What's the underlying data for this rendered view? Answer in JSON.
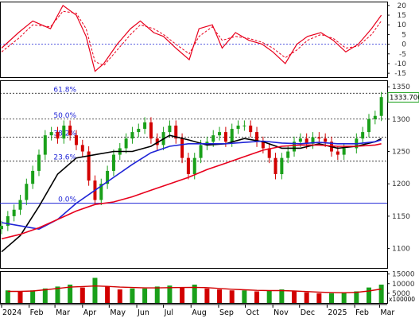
{
  "chart_data": [
    {
      "type": "line",
      "panel": "oscillator",
      "y_ticks": [
        "20",
        "15",
        "10",
        "5",
        "0",
        "-5",
        "-10",
        "-15"
      ],
      "ylim": [
        -17,
        22
      ],
      "grid": "dashed horizontal at 0",
      "series": [
        {
          "style": "solid",
          "color": "#e8001c",
          "x": [
            "2024-01-01",
            "2024-01-20",
            "2024-02-05",
            "2024-02-25",
            "2024-03-10",
            "2024-03-25",
            "2024-04-05",
            "2024-04-15",
            "2024-04-25",
            "2024-05-10",
            "2024-05-25",
            "2024-06-05",
            "2024-06-20",
            "2024-07-01",
            "2024-07-15",
            "2024-07-30",
            "2024-08-10",
            "2024-08-25",
            "2024-09-05",
            "2024-09-20",
            "2024-10-05",
            "2024-10-20",
            "2024-11-01",
            "2024-11-15",
            "2024-11-28",
            "2024-12-10",
            "2024-12-25",
            "2025-01-08",
            "2025-01-22",
            "2025-02-05",
            "2025-02-20",
            "2025-03-03"
          ],
          "values": [
            -2,
            6,
            12,
            8,
            20,
            15,
            4,
            -14,
            -10,
            0,
            8,
            12,
            6,
            4,
            -2,
            -8,
            8,
            10,
            -2,
            6,
            2,
            0,
            -4,
            -10,
            0,
            4,
            6,
            2,
            -4,
            0,
            8,
            15
          ]
        },
        {
          "style": "dashed",
          "color": "#e8001c",
          "x": [
            "2024-01-01",
            "2024-01-20",
            "2024-02-05",
            "2024-02-25",
            "2024-03-10",
            "2024-03-25",
            "2024-04-05",
            "2024-04-15",
            "2024-04-25",
            "2024-05-10",
            "2024-05-25",
            "2024-06-05",
            "2024-06-20",
            "2024-07-01",
            "2024-07-15",
            "2024-07-30",
            "2024-08-10",
            "2024-08-25",
            "2024-09-05",
            "2024-09-20",
            "2024-10-05",
            "2024-10-20",
            "2024-11-01",
            "2024-11-15",
            "2024-11-28",
            "2024-12-10",
            "2024-12-25",
            "2025-01-08",
            "2025-01-22",
            "2025-02-05",
            "2025-02-20",
            "2025-03-03"
          ],
          "values": [
            -4,
            3,
            10,
            9,
            17,
            16,
            8,
            -9,
            -11,
            -3,
            5,
            10,
            8,
            5,
            0,
            -5,
            4,
            9,
            2,
            4,
            3,
            1,
            -2,
            -7,
            -3,
            2,
            5,
            3,
            -2,
            -1,
            5,
            12
          ]
        }
      ]
    },
    {
      "type": "line",
      "panel": "price",
      "ylim": [
        1070,
        1360
      ],
      "y_ticks": [
        "1350",
        "1300",
        "1250",
        "1200",
        "1150",
        "1100"
      ],
      "x_labels": [
        "2024",
        "Feb",
        "Mar",
        "Apr",
        "May",
        "Jun",
        "Jul",
        "Aug",
        "Sep",
        "Oct",
        "Nov",
        "Dec",
        "2025",
        "Feb",
        "Mar"
      ],
      "x_label_dates": [
        "2024-01-01",
        "2024-02-01",
        "2024-03-01",
        "2024-04-01",
        "2024-05-01",
        "2024-06-01",
        "2024-07-01",
        "2024-08-01",
        "2024-09-01",
        "2024-10-01",
        "2024-11-01",
        "2024-12-01",
        "2025-01-01",
        "2025-02-01",
        "2025-03-01"
      ],
      "last_value": "1333.700",
      "fibonacci": [
        {
          "label": "61.8%",
          "value": 1340
        },
        {
          "label": "50.0%",
          "value": 1300
        },
        {
          "label": "38.2%",
          "value": 1272
        },
        {
          "label": "23.6%",
          "value": 1235
        },
        {
          "label": "0.0%",
          "value": 1170
        }
      ],
      "price_close": {
        "x": [
          "2024-01-01",
          "2024-01-08",
          "2024-01-15",
          "2024-01-22",
          "2024-01-29",
          "2024-02-05",
          "2024-02-12",
          "2024-02-19",
          "2024-02-26",
          "2024-03-04",
          "2024-03-11",
          "2024-03-18",
          "2024-03-25",
          "2024-04-01",
          "2024-04-08",
          "2024-04-15",
          "2024-04-22",
          "2024-04-29",
          "2024-05-06",
          "2024-05-13",
          "2024-05-20",
          "2024-05-27",
          "2024-06-03",
          "2024-06-10",
          "2024-06-17",
          "2024-06-24",
          "2024-07-01",
          "2024-07-08",
          "2024-07-15",
          "2024-07-22",
          "2024-07-29",
          "2024-08-05",
          "2024-08-12",
          "2024-08-19",
          "2024-08-26",
          "2024-09-02",
          "2024-09-09",
          "2024-09-16",
          "2024-09-23",
          "2024-09-30",
          "2024-10-07",
          "2024-10-14",
          "2024-10-21",
          "2024-10-28",
          "2024-11-04",
          "2024-11-11",
          "2024-11-18",
          "2024-11-25",
          "2024-12-02",
          "2024-12-09",
          "2024-12-16",
          "2024-12-23",
          "2024-12-30",
          "2025-01-06",
          "2025-01-13",
          "2025-01-20",
          "2025-02-03",
          "2025-02-10",
          "2025-02-17",
          "2025-02-24",
          "2025-03-03"
        ],
        "values": [
          1135,
          1150,
          1160,
          1175,
          1200,
          1220,
          1245,
          1275,
          1280,
          1270,
          1290,
          1275,
          1260,
          1250,
          1205,
          1175,
          1200,
          1220,
          1245,
          1255,
          1270,
          1280,
          1285,
          1295,
          1270,
          1260,
          1280,
          1290,
          1270,
          1240,
          1215,
          1240,
          1260,
          1265,
          1275,
          1280,
          1265,
          1285,
          1290,
          1290,
          1280,
          1265,
          1255,
          1240,
          1215,
          1240,
          1250,
          1265,
          1270,
          1262,
          1272,
          1270,
          1265,
          1250,
          1245,
          1255,
          1270,
          1280,
          1300,
          1305,
          1334
        ]
      },
      "series": [
        {
          "color": "#000000",
          "x": [
            "2024-01-01",
            "2024-01-22",
            "2024-02-12",
            "2024-03-04",
            "2024-03-25",
            "2024-04-15",
            "2024-05-06",
            "2024-05-27",
            "2024-06-17",
            "2024-07-08",
            "2024-07-29",
            "2024-08-19",
            "2024-09-09",
            "2024-09-30",
            "2024-10-21",
            "2024-11-11",
            "2024-12-02",
            "2024-12-23",
            "2025-01-13",
            "2025-02-03",
            "2025-02-24",
            "2025-03-03"
          ],
          "values": [
            1095,
            1120,
            1165,
            1215,
            1240,
            1245,
            1250,
            1250,
            1258,
            1275,
            1268,
            1260,
            1262,
            1270,
            1265,
            1255,
            1255,
            1262,
            1255,
            1258,
            1265,
            1270
          ]
        },
        {
          "color": "#1f24d6",
          "x": [
            "2024-01-01",
            "2024-01-22",
            "2024-02-12",
            "2024-03-04",
            "2024-03-25",
            "2024-04-15",
            "2024-05-06",
            "2024-05-27",
            "2024-06-17",
            "2024-07-08",
            "2024-07-29",
            "2024-08-19",
            "2024-09-09",
            "2024-09-30",
            "2024-10-21",
            "2024-11-11",
            "2024-12-02",
            "2024-12-23",
            "2025-01-13",
            "2025-02-03",
            "2025-02-24",
            "2025-03-03"
          ],
          "values": [
            1140,
            1135,
            1130,
            1145,
            1170,
            1190,
            1210,
            1230,
            1248,
            1258,
            1262,
            1262,
            1262,
            1264,
            1266,
            1263,
            1262,
            1264,
            1262,
            1262,
            1265,
            1268
          ]
        },
        {
          "color": "#e8001c",
          "x": [
            "2024-01-01",
            "2024-01-22",
            "2024-02-12",
            "2024-03-04",
            "2024-03-25",
            "2024-04-15",
            "2024-05-06",
            "2024-05-27",
            "2024-06-17",
            "2024-07-08",
            "2024-07-29",
            "2024-08-19",
            "2024-09-09",
            "2024-09-30",
            "2024-10-21",
            "2024-11-11",
            "2024-12-02",
            "2024-12-23",
            "2025-01-13",
            "2025-02-03",
            "2025-02-24",
            "2025-03-03"
          ],
          "values": [
            1115,
            1122,
            1132,
            1145,
            1158,
            1168,
            1172,
            1180,
            1190,
            1200,
            1210,
            1222,
            1232,
            1242,
            1252,
            1258,
            1260,
            1260,
            1258,
            1258,
            1260,
            1262
          ]
        }
      ]
    },
    {
      "type": "bar",
      "panel": "volume",
      "ylabel": "x100000",
      "y_ticks": [
        "15000",
        "10000",
        "5000"
      ],
      "ylim": [
        0,
        16500
      ],
      "x": [
        "2024-01-08",
        "2024-01-22",
        "2024-02-05",
        "2024-02-19",
        "2024-03-04",
        "2024-03-18",
        "2024-04-01",
        "2024-04-15",
        "2024-04-29",
        "2024-05-13",
        "2024-05-27",
        "2024-06-10",
        "2024-06-24",
        "2024-07-08",
        "2024-07-22",
        "2024-08-05",
        "2024-08-19",
        "2024-09-02",
        "2024-09-16",
        "2024-09-30",
        "2024-10-14",
        "2024-10-28",
        "2024-11-11",
        "2024-11-25",
        "2024-12-09",
        "2024-12-23",
        "2025-01-06",
        "2025-01-20",
        "2025-02-03",
        "2025-02-17",
        "2025-03-03"
      ],
      "values": [
        6500,
        6000,
        6500,
        7500,
        8500,
        9500,
        8000,
        13000,
        8500,
        7000,
        7500,
        7500,
        8500,
        9000,
        8000,
        9500,
        7500,
        7000,
        6500,
        6500,
        6000,
        6500,
        7000,
        6000,
        5500,
        5000,
        5000,
        5500,
        6000,
        8000,
        9500
      ],
      "ma": [
        6000,
        6000,
        6200,
        6800,
        7500,
        8200,
        8500,
        8800,
        8600,
        8200,
        8000,
        7800,
        7800,
        7900,
        8000,
        8100,
        7900,
        7500,
        7100,
        6800,
        6500,
        6400,
        6400,
        6200,
        5900,
        5600,
        5400,
        5300,
        5500,
        6200,
        7200
      ]
    }
  ]
}
